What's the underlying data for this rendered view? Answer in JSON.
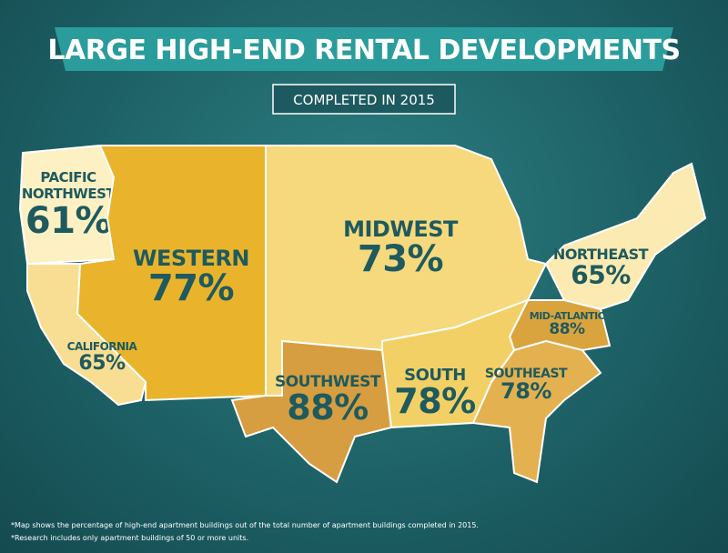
{
  "header": {
    "title": "LARGE HIGH-END RENTAL DEVELOPMENTS",
    "subtitle": "COMPLETED IN 2015"
  },
  "regions": [
    {
      "lines": [
        "PACIFIC",
        "NORTHWEST"
      ],
      "label": "61%",
      "color": "#fdf1c3"
    },
    {
      "lines": [
        "WESTERN"
      ],
      "label": "77%",
      "color": "#e9b42c"
    },
    {
      "lines": [
        "MIDWEST"
      ],
      "label": "73%",
      "color": "#f5d97c"
    },
    {
      "lines": [
        "NORTHEAST"
      ],
      "label": "65%",
      "color": "#fbeab2"
    },
    {
      "lines": [
        "MID-ATLANTIC"
      ],
      "label": "88%",
      "color": "#d9a33e"
    },
    {
      "lines": [
        "CALIFORNIA"
      ],
      "label": "65%",
      "color": "#f7de93"
    },
    {
      "lines": [
        "SOUTHWEST"
      ],
      "label": "88%",
      "color": "#d69e40"
    },
    {
      "lines": [
        "SOUTH"
      ],
      "label": "78%",
      "color": "#f3d065"
    },
    {
      "lines": [
        "SOUTHEAST"
      ],
      "label": "78%",
      "color": "#e3b150"
    }
  ],
  "footnotes": [
    "*Map shows the percentage of high-end apartment buildings out of the total number of apartment buildings completed in 2015.",
    "*Research includes only apartment buildings of 50 or more units."
  ]
}
